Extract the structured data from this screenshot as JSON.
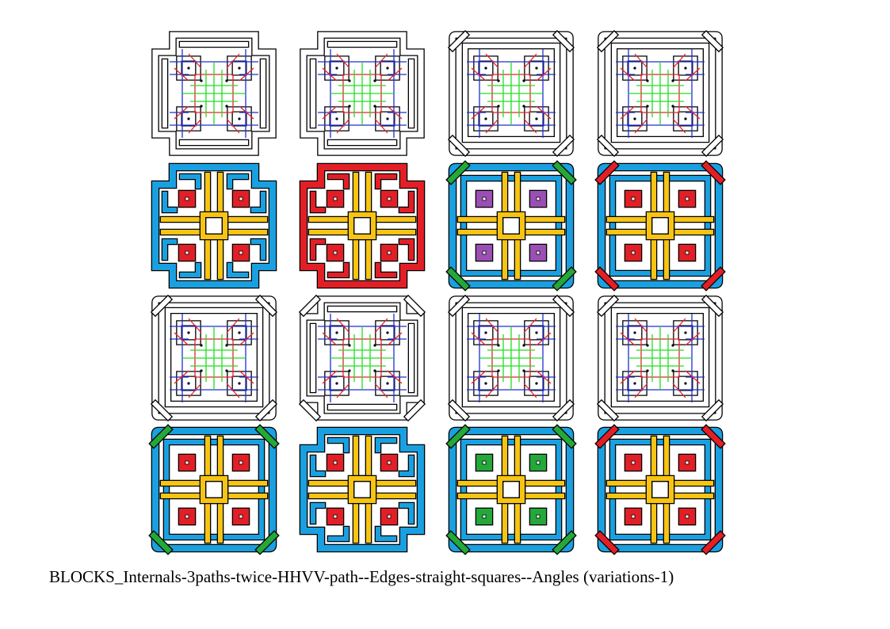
{
  "caption": "BLOCKS_Internals-3paths-twice-HHVV-path--Edges-straight-squares--Angles (variations-1)",
  "colors": {
    "line_blue": "#1f2fd0",
    "line_red": "#e8232a",
    "line_green": "#22dd22",
    "fill_blue": "#1aa0e0",
    "fill_red": "#e21f26",
    "fill_yellow": "#f7c414",
    "fill_green": "#23a839",
    "fill_purple": "#9b4fb5",
    "outline": "#000000"
  },
  "grid": {
    "rows": 4,
    "columns": 4,
    "tiles": [
      {
        "row": 1,
        "col": 1,
        "style": "diagram",
        "edge": "cross-stepped",
        "corner_knots": false
      },
      {
        "row": 1,
        "col": 2,
        "style": "diagram",
        "edge": "cross-stepped",
        "corner_knots": false
      },
      {
        "row": 1,
        "col": 3,
        "style": "diagram",
        "edge": "square",
        "corner_knots": true
      },
      {
        "row": 1,
        "col": 4,
        "style": "diagram",
        "edge": "square",
        "corner_knots": true
      },
      {
        "row": 2,
        "col": 1,
        "style": "colored",
        "edge": "cross-stepped",
        "corner_knots": false,
        "outer_color": "blue",
        "cell_color": "red"
      },
      {
        "row": 2,
        "col": 2,
        "style": "colored",
        "edge": "cross-stepped",
        "corner_knots": false,
        "outer_color": "red",
        "cell_color": "red"
      },
      {
        "row": 2,
        "col": 3,
        "style": "colored",
        "edge": "square",
        "corner_knots": true,
        "outer_color": "blue",
        "cell_color": "purple",
        "knot_color": "green"
      },
      {
        "row": 2,
        "col": 4,
        "style": "colored",
        "edge": "square",
        "corner_knots": true,
        "outer_color": "blue",
        "cell_color": "red",
        "knot_color": "red"
      },
      {
        "row": 3,
        "col": 1,
        "style": "diagram",
        "edge": "square",
        "corner_knots": true
      },
      {
        "row": 3,
        "col": 2,
        "style": "diagram",
        "edge": "cross-stepped",
        "corner_knots": true
      },
      {
        "row": 3,
        "col": 3,
        "style": "diagram",
        "edge": "square",
        "corner_knots": true
      },
      {
        "row": 3,
        "col": 4,
        "style": "diagram",
        "edge": "square",
        "corner_knots": true
      },
      {
        "row": 4,
        "col": 1,
        "style": "colored",
        "edge": "square",
        "corner_knots": true,
        "outer_color": "blue",
        "cell_color": "red",
        "knot_color": "green"
      },
      {
        "row": 4,
        "col": 2,
        "style": "colored",
        "edge": "cross-stepped",
        "corner_knots": true,
        "outer_color": "blue",
        "cell_color": "red"
      },
      {
        "row": 4,
        "col": 3,
        "style": "colored",
        "edge": "square",
        "corner_knots": true,
        "outer_color": "blue",
        "cell_color": "green",
        "knot_color": "green"
      },
      {
        "row": 4,
        "col": 4,
        "style": "colored",
        "edge": "square",
        "corner_knots": true,
        "outer_color": "blue",
        "cell_color": "red",
        "knot_color": "red"
      }
    ]
  }
}
